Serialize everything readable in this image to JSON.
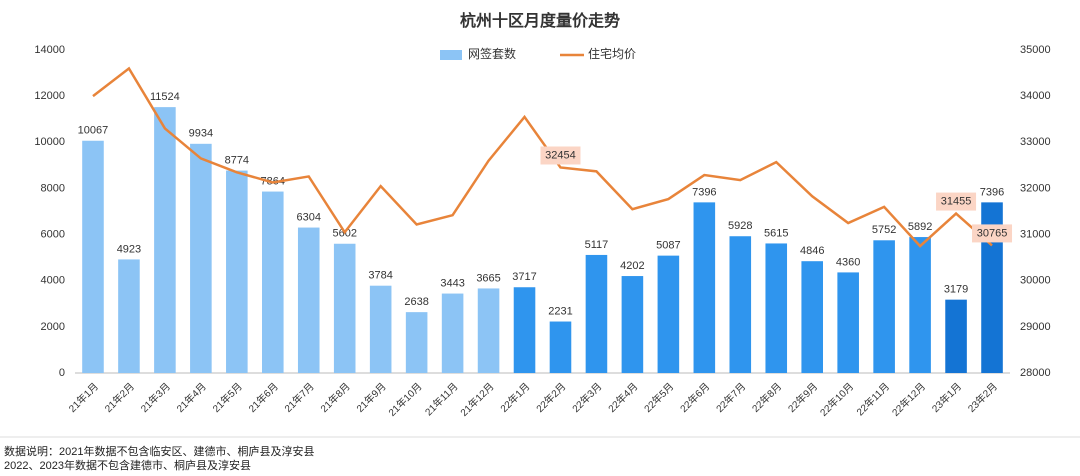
{
  "chart_data": {
    "type": "bar-line",
    "title": "杭州十区月度量价走势",
    "categories": [
      "21年1月",
      "21年2月",
      "21年3月",
      "21年4月",
      "21年5月",
      "21年6月",
      "21年7月",
      "21年8月",
      "21年9月",
      "21年10月",
      "21年11月",
      "21年12月",
      "22年1月",
      "22年2月",
      "22年3月",
      "22年4月",
      "22年5月",
      "22年6月",
      "22年7月",
      "22年8月",
      "22年9月",
      "22年10月",
      "22年11月",
      "22年12月",
      "23年1月",
      "23年2月"
    ],
    "series": [
      {
        "name": "网签套数",
        "kind": "bar",
        "color": "#8cc4f5",
        "colors": [
          "#8cc4f5",
          "#8cc4f5",
          "#8cc4f5",
          "#8cc4f5",
          "#8cc4f5",
          "#8cc4f5",
          "#8cc4f5",
          "#8cc4f5",
          "#8cc4f5",
          "#8cc4f5",
          "#8cc4f5",
          "#8cc4f5",
          "#2f95ee",
          "#2f95ee",
          "#2f95ee",
          "#2f95ee",
          "#2f95ee",
          "#2f95ee",
          "#2f95ee",
          "#2f95ee",
          "#2f95ee",
          "#2f95ee",
          "#2f95ee",
          "#2f95ee",
          "#1474d4",
          "#1474d4"
        ],
        "values": [
          10067,
          4923,
          11524,
          9934,
          8774,
          7864,
          6304,
          5602,
          3784,
          2638,
          3443,
          3665,
          3717,
          2231,
          5117,
          4202,
          5087,
          7396,
          5928,
          5615,
          4846,
          4360,
          5752,
          5892,
          3179,
          7396
        ]
      },
      {
        "name": "住宅均价",
        "kind": "line",
        "axis": "y2",
        "color": "#e8843a",
        "label_color": "#fbd5c5",
        "values": [
          34000,
          34600,
          33300,
          32650,
          32350,
          32130,
          32260,
          31050,
          32050,
          31220,
          31420,
          32600,
          33550,
          32454,
          32370,
          31550,
          31770,
          32290,
          32180,
          32570,
          31830,
          31250,
          31600,
          30750,
          31455,
          30765
        ],
        "label_indices": [
          13,
          24,
          25
        ]
      }
    ],
    "ylim": [
      0,
      14000
    ],
    "yticks": [
      0,
      2000,
      4000,
      6000,
      8000,
      10000,
      12000,
      14000
    ],
    "y2lim": [
      28000,
      35000
    ],
    "y2ticks": [
      28000,
      29000,
      30000,
      31000,
      32000,
      33000,
      34000,
      35000
    ],
    "legend": "top",
    "notes": [
      "数据说明：2021年数据不包含临安区、建德市、桐庐县及淳安县",
      "2022、2023年数据不包含建德市、桐庐县及淳安县"
    ]
  }
}
